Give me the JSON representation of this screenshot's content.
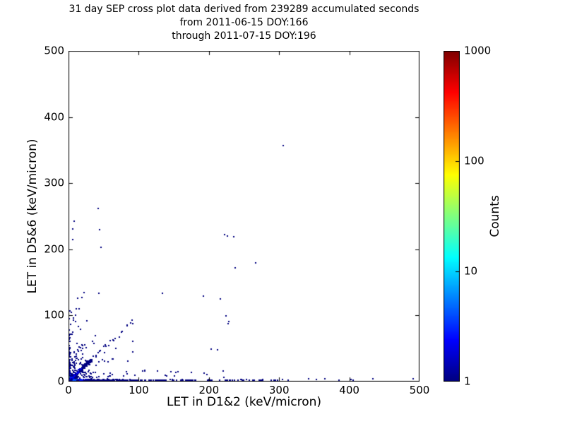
{
  "figure": {
    "background": "#ffffff",
    "text_color": "#000000",
    "frame_color": "#000000"
  },
  "title": {
    "line1": "31 day SEP cross plot data derived from 239289 accumulated seconds",
    "line2": "from 2011-06-15 DOY:166",
    "line3": "through 2011-07-15 DOY:196"
  },
  "axes": {
    "xlabel": "LET in D1&2 (keV/micron)",
    "ylabel": "LET in D5&6 (keV/micron)",
    "xlim": [
      0,
      500
    ],
    "ylim": [
      0,
      500
    ],
    "xticks": [
      "0",
      "100",
      "200",
      "300",
      "400",
      "500"
    ],
    "yticks": [
      "0",
      "100",
      "200",
      "300",
      "400",
      "500"
    ]
  },
  "colorbar": {
    "label": "Counts",
    "scale": "log",
    "range": [
      1,
      1000
    ],
    "colormap": "jet",
    "anchor_colors": [
      "#000080",
      "#0000ff",
      "#00ffff",
      "#7dff78",
      "#ffd500",
      "#ff0000",
      "#800000"
    ],
    "ticks": [
      {
        "label": "1000",
        "frac": 1.0
      },
      {
        "label": "100",
        "frac": 0.6667
      },
      {
        "label": "10",
        "frac": 0.3333
      },
      {
        "label": "1",
        "frac": 0.0
      }
    ]
  },
  "chart_data": {
    "type": "heatmap",
    "subtype": "2d-histogram cross plot rendered as sparse colored cells",
    "title": "31 day SEP cross plot data derived from 239289 accumulated seconds from 2011-06-15 DOY:166 through 2011-07-15 DOY:196",
    "accumulated_seconds": 239289,
    "period": {
      "from": "2011-06-15",
      "from_doy": 166,
      "through": "2011-07-15",
      "through_doy": 196
    },
    "xlabel": "LET in D1&2 (keV/micron)",
    "ylabel": "LET in D5&6 (keV/micron)",
    "xlim": [
      0,
      500
    ],
    "ylim": [
      0,
      500
    ],
    "color_scale": {
      "quantity": "Counts",
      "scale": "log",
      "min": 1,
      "max": 1000,
      "colormap": "jet"
    },
    "seed": 20110615,
    "isolated_points": [
      [
        306,
        357,
        1
      ],
      [
        222,
        222,
        1
      ],
      [
        226,
        220,
        1
      ],
      [
        235,
        219,
        1
      ],
      [
        267,
        180,
        1
      ],
      [
        237,
        172,
        1
      ],
      [
        134,
        134,
        1
      ],
      [
        192,
        129,
        1
      ],
      [
        216,
        125,
        1
      ],
      [
        224,
        99,
        1
      ],
      [
        228,
        91,
        1
      ],
      [
        227,
        88,
        1
      ],
      [
        203,
        49,
        1
      ],
      [
        212,
        48,
        1
      ],
      [
        109,
        16,
        1
      ],
      [
        127,
        16,
        1
      ],
      [
        193,
        13,
        1
      ],
      [
        220,
        16,
        1
      ],
      [
        42,
        262,
        1
      ],
      [
        8,
        243,
        1
      ],
      [
        6,
        231,
        1
      ],
      [
        6,
        215,
        1
      ],
      [
        44,
        230,
        1
      ],
      [
        46,
        203,
        1
      ],
      [
        43,
        134,
        1
      ],
      [
        19,
        127,
        1
      ],
      [
        91,
        93,
        1
      ],
      [
        84,
        84,
        1
      ],
      [
        92,
        61,
        1
      ],
      [
        305,
        3,
        1
      ],
      [
        313,
        2,
        1
      ],
      [
        342,
        4,
        1
      ],
      [
        353,
        3,
        1
      ],
      [
        365,
        4,
        1
      ],
      [
        385,
        2,
        1
      ],
      [
        402,
        3,
        1
      ],
      [
        405,
        2,
        1
      ],
      [
        434,
        4,
        1
      ],
      [
        491,
        4,
        1
      ]
    ],
    "clusters": [
      {
        "name": "corner-hotspot",
        "type": "hotspot",
        "cellSize": 2,
        "extent": 12,
        "peakCount": 100,
        "decay": 4.0
      },
      {
        "name": "origin-triangle",
        "type": "expXY",
        "n": 190,
        "xScale": 16,
        "yScale": 14,
        "xMax": 78,
        "yMax": 72
      },
      {
        "name": "mid-scatter",
        "type": "expXY",
        "n": 42,
        "xScale": 26,
        "yScale": 38,
        "xMax": 120,
        "yMax": 135,
        "y0": 28
      },
      {
        "name": "low-scatter",
        "type": "uniform",
        "n": 14,
        "x0": 55,
        "x1": 235,
        "y0": 4,
        "y1": 18
      },
      {
        "name": "left-column",
        "type": "expBandY",
        "n": 65,
        "scale": 28,
        "max": 95,
        "xMax": 3,
        "ampCount": 5,
        "ampScale": 14
      },
      {
        "name": "bottom-band",
        "type": "expBandX",
        "n": 330,
        "scale": 55,
        "max": 300,
        "yMax": 3,
        "uniformFrac": 0.25,
        "ampCount": 9,
        "ampScale": 16
      },
      {
        "name": "diagonal-tail",
        "type": "diagonal",
        "n": 22,
        "t0": 34,
        "t1": 95,
        "sigma": 2.2,
        "ampCount": 0,
        "ampScale": 15
      },
      {
        "name": "diagonal-band",
        "type": "diagonal",
        "n": 150,
        "t0": 1,
        "t1": 34,
        "sigma": 1.6,
        "ampCount": 4,
        "ampScale": 15
      }
    ]
  }
}
